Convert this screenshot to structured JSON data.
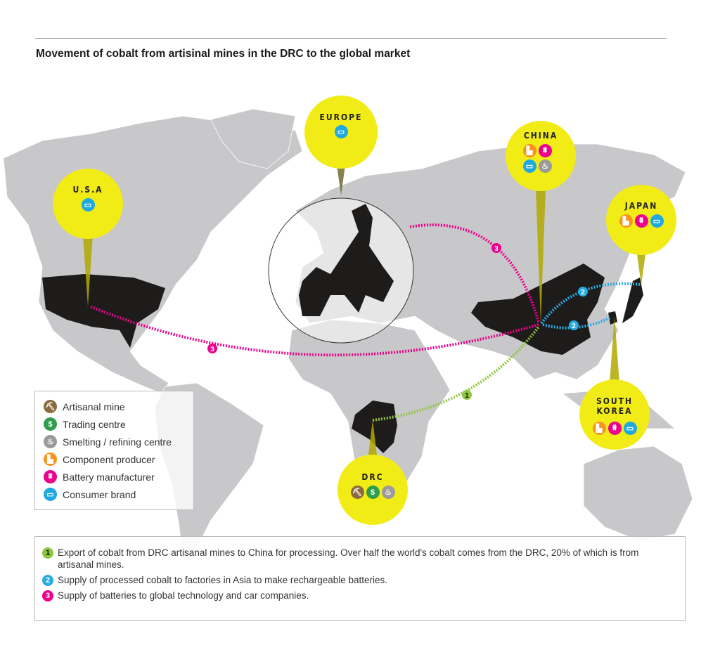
{
  "title": "Movement of cobalt from artisinal mines in the DRC to the global market",
  "colors": {
    "bubble": "#f2ec16",
    "bubble_shade": "#c9c200",
    "land": "#c8c8ca",
    "highlight": "#1e1b1b",
    "flow1": "#8dc63f",
    "flow2": "#29abe2",
    "flow3": "#ec008c"
  },
  "bubbles": [
    {
      "label": "EUROPE",
      "icons": [
        "consumer-brand"
      ]
    },
    {
      "label": "CHINA",
      "icons": [
        "component-producer",
        "battery-manufacturer",
        "consumer-brand",
        "smelting-refining-centre"
      ]
    },
    {
      "label": "U.S.A",
      "icons": [
        "consumer-brand"
      ]
    },
    {
      "label": "JAPAN",
      "icons": [
        "component-producer",
        "battery-manufacturer",
        "consumer-brand"
      ]
    },
    {
      "label": "SOUTH KOREA",
      "icons": [
        "component-producer",
        "battery-manufacturer",
        "consumer-brand"
      ]
    },
    {
      "label": "DRC",
      "icons": [
        "artisanal-mine",
        "trading-centre",
        "smelting-refining-centre"
      ]
    }
  ],
  "flows": [
    {
      "number": "1",
      "from": "DRC",
      "to": "CHINA"
    },
    {
      "number": "2",
      "from": "CHINA",
      "to": "JAPAN"
    },
    {
      "number": "2",
      "from": "CHINA",
      "to": "SOUTH KOREA"
    },
    {
      "number": "3",
      "from": "CHINA",
      "to": "U.S.A"
    },
    {
      "number": "3",
      "from": "CHINA",
      "to": "EUROPE"
    }
  ],
  "legend": [
    {
      "icon": "artisanal-mine",
      "label": "Artisanal mine",
      "color": "#8b6a3e",
      "glyph": "⛏"
    },
    {
      "icon": "trading-centre",
      "label": "Trading centre",
      "color": "#2e9e48",
      "glyph": "$"
    },
    {
      "icon": "smelting-refining-centre",
      "label": "Smelting / refining centre",
      "color": "#9a9a9a",
      "glyph": "♨"
    },
    {
      "icon": "component-producer",
      "label": "Component producer",
      "color": "#f7941d",
      "glyph": "▙"
    },
    {
      "icon": "battery-manufacturer",
      "label": "Battery manufacturer",
      "color": "#ec008c",
      "glyph": "⩩"
    },
    {
      "icon": "consumer-brand",
      "label": "Consumer brand",
      "color": "#1fa9e1",
      "glyph": "▭"
    }
  ],
  "notes": [
    {
      "number": "1",
      "text": "Export of cobalt from DRC artisanal mines to China for processing. Over half the world's cobalt comes from the DRC, 20% of which is from artisanal mines."
    },
    {
      "number": "2",
      "text": "Supply of processed cobalt to factories in Asia to make rechargeable batteries."
    },
    {
      "number": "3",
      "text": "Supply of batteries to global technology and car companies."
    }
  ]
}
